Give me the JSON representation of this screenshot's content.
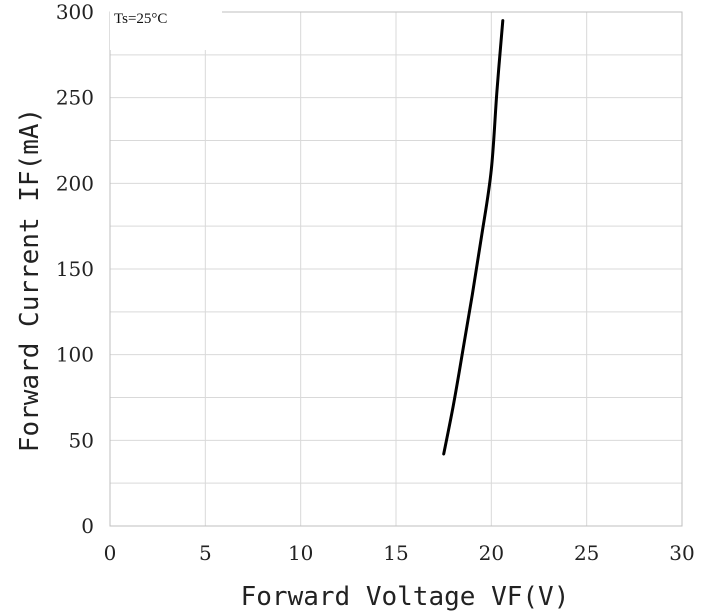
{
  "chart_data": {
    "type": "line",
    "title": "",
    "annotation": "Ts=25°C",
    "xlabel": "Forward Voltage VF(V)",
    "ylabel": "Forward Current IF(mA)",
    "xlim": [
      0,
      30
    ],
    "ylim": [
      0,
      300
    ],
    "x_ticks": [
      0,
      5,
      10,
      15,
      20,
      25,
      30
    ],
    "y_ticks": [
      0,
      50,
      100,
      150,
      200,
      250,
      300
    ],
    "y_minor_step": 25,
    "grid": true,
    "series": [
      {
        "color": "#000000",
        "x": [
          17.5,
          18.0,
          18.5,
          19.0,
          19.5,
          20.0,
          20.3,
          20.6
        ],
        "y": [
          42,
          70,
          102,
          135,
          170,
          208,
          255,
          295
        ]
      }
    ]
  }
}
